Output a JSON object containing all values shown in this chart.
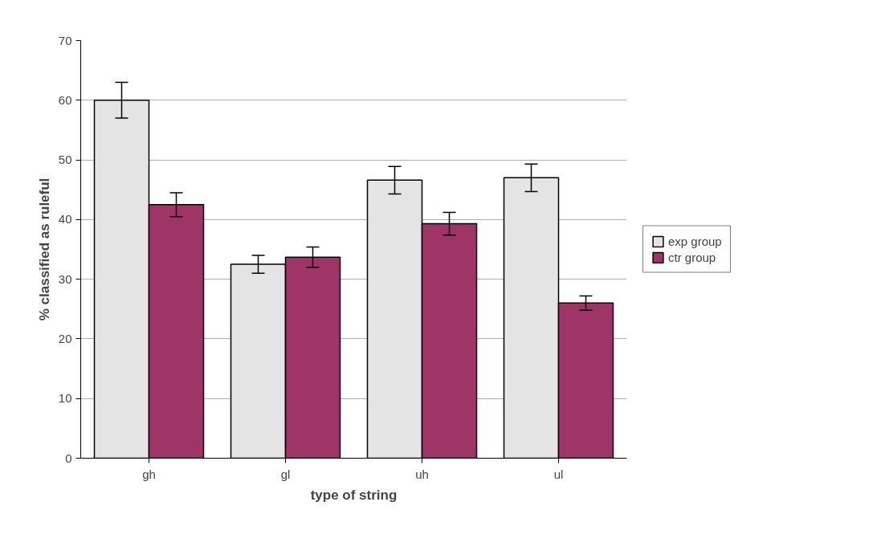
{
  "chart_data": {
    "type": "bar",
    "xlabel": "type of string",
    "ylabel": "% classified as ruleful",
    "categories": [
      "gh",
      "gl",
      "uh",
      "ul"
    ],
    "series": [
      {
        "name": "exp group",
        "color": "#e4e4e4",
        "values": [
          60,
          32.5,
          46.6,
          47
        ],
        "errors": [
          3,
          1.5,
          2.3,
          2.3
        ]
      },
      {
        "name": "ctr group",
        "color": "#9e3566",
        "values": [
          42.5,
          33.7,
          39.3,
          26
        ],
        "errors": [
          2,
          1.7,
          1.9,
          1.2
        ]
      }
    ],
    "ylim": [
      0,
      70
    ],
    "yticks": [
      0,
      10,
      20,
      30,
      40,
      50,
      60,
      70
    ],
    "grid": "y",
    "legend": "right"
  }
}
